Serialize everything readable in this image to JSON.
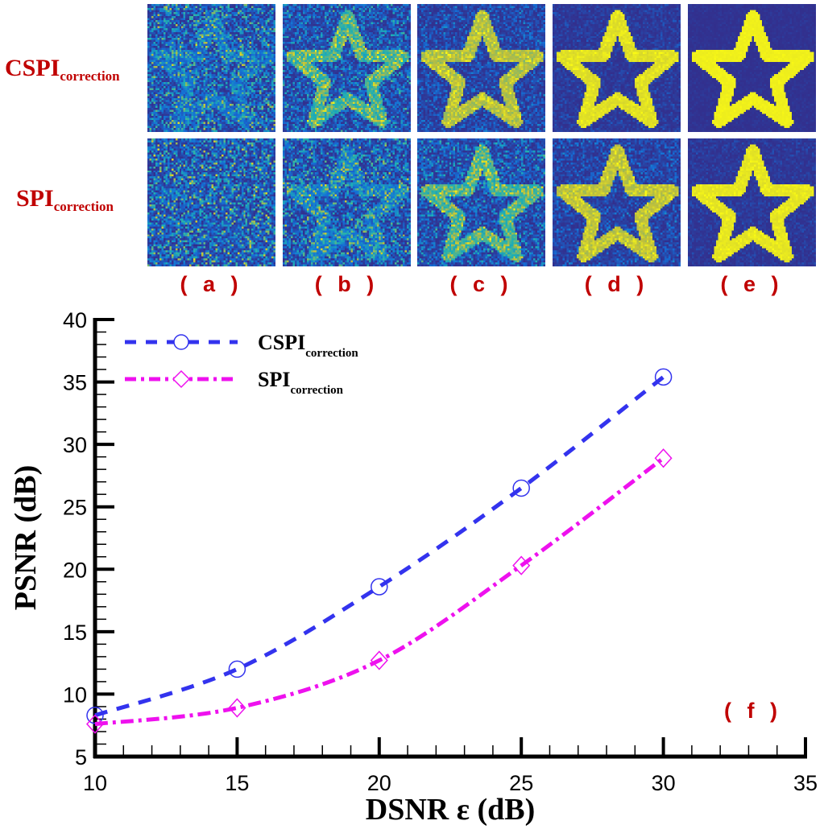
{
  "figure": {
    "row_labels": [
      {
        "main": "CSPI",
        "sub": "correction"
      },
      {
        "main": "SPI",
        "sub": "correction"
      }
    ],
    "panel_labels": [
      "( a )",
      "( b )",
      "( c )",
      "( d )",
      "( e )"
    ],
    "panel_images": "star-shaped reconstructions, parula colormap"
  },
  "chart_data": {
    "type": "line",
    "panel_label": "( f )",
    "xlabel": "DSNR  ε (dB)",
    "ylabel": "PSNR (dB)",
    "xlim": [
      10,
      35
    ],
    "ylim": [
      5,
      40
    ],
    "xticks": [
      10,
      15,
      20,
      25,
      30,
      35
    ],
    "yticks": [
      5,
      10,
      15,
      20,
      25,
      30,
      35,
      40
    ],
    "grid": false,
    "legend_placement": "top-left",
    "x": [
      10,
      15,
      20,
      25,
      30
    ],
    "series": [
      {
        "name": "CSPI",
        "name_sub": "correction",
        "values": [
          8.3,
          12.0,
          18.6,
          26.5,
          35.4
        ],
        "color": "#3333ee",
        "style": "dashed",
        "marker": "circle"
      },
      {
        "name": "SPI",
        "name_sub": "correction",
        "values": [
          7.6,
          8.9,
          12.7,
          20.3,
          28.9
        ],
        "color": "#ee11ee",
        "style": "dash-dot",
        "marker": "diamond"
      }
    ],
    "label_color": "#c00000"
  }
}
